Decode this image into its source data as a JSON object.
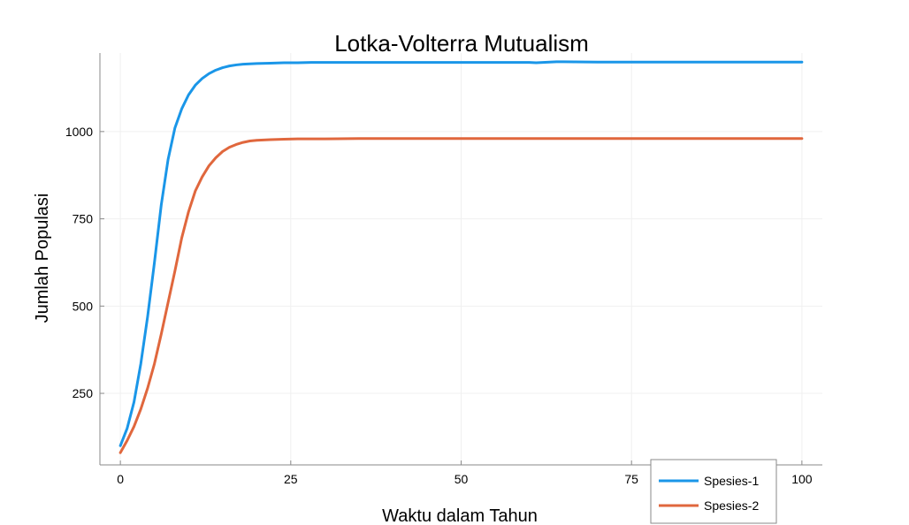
{
  "chart_data": {
    "type": "line",
    "title": "Lotka-Volterra Mutualism",
    "xlabel": "Waktu dalam Tahun",
    "ylabel": "Jumlah Populasi",
    "xlim": [
      -3,
      103
    ],
    "ylim": [
      45,
      1225
    ],
    "xticks": [
      0,
      25,
      50,
      75,
      100
    ],
    "yticks": [
      250,
      500,
      750,
      1000
    ],
    "grid": true,
    "legend_position": "bottom-right",
    "series": [
      {
        "name": "Spesies-1",
        "color": "#1a96e8",
        "x": [
          0,
          1,
          2,
          3,
          4,
          5,
          6,
          7,
          8,
          9,
          10,
          11,
          12,
          13,
          14,
          15,
          16,
          17,
          18,
          19,
          20,
          22,
          24,
          26,
          28,
          30,
          35,
          40,
          45,
          50,
          55,
          60,
          61,
          62,
          63,
          64,
          65,
          70,
          75,
          80,
          85,
          90,
          95,
          100
        ],
        "y": [
          100,
          150,
          225,
          335,
          470,
          625,
          790,
          920,
          1010,
          1065,
          1105,
          1133,
          1152,
          1166,
          1176,
          1183,
          1188,
          1191,
          1193,
          1194,
          1195,
          1196,
          1197,
          1197,
          1198,
          1198,
          1198,
          1198,
          1198,
          1198,
          1198,
          1198,
          1197,
          1198,
          1199,
          1200,
          1200,
          1199,
          1199,
          1199,
          1199,
          1199,
          1199,
          1199
        ]
      },
      {
        "name": "Spesies-2",
        "color": "#e0673d",
        "x": [
          0,
          1,
          2,
          3,
          4,
          5,
          6,
          7,
          8,
          9,
          10,
          11,
          12,
          13,
          14,
          15,
          16,
          17,
          18,
          19,
          20,
          22,
          24,
          26,
          28,
          30,
          35,
          40,
          50,
          60,
          70,
          80,
          90,
          100
        ],
        "y": [
          80,
          115,
          155,
          205,
          265,
          335,
          420,
          510,
          600,
          695,
          770,
          830,
          870,
          902,
          925,
          943,
          955,
          963,
          969,
          973,
          975,
          977,
          978,
          979,
          979,
          979,
          980,
          980,
          980,
          980,
          980,
          980,
          980,
          980
        ]
      }
    ]
  }
}
